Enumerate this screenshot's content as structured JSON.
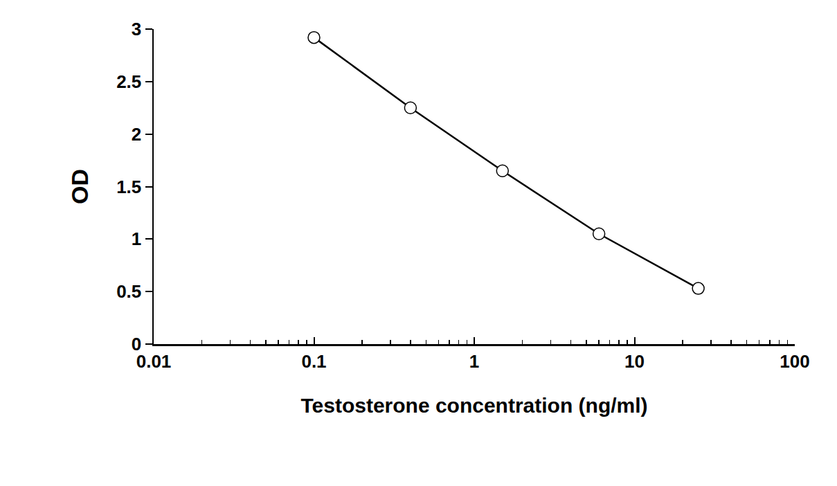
{
  "chart_data": {
    "type": "line",
    "x": [
      0.1,
      0.4,
      1.5,
      6,
      25
    ],
    "values": [
      2.92,
      2.25,
      1.65,
      1.05,
      0.53
    ],
    "xlabel": "Testosterone concentration (ng/ml)",
    "ylabel": "OD",
    "xlim": [
      0.01,
      100
    ],
    "ylim": [
      0,
      3
    ],
    "xticks": [
      0.01,
      0.1,
      1,
      10,
      100
    ],
    "yticks": [
      0,
      0.5,
      1,
      1.5,
      2,
      2.5,
      3
    ],
    "log": "x",
    "grid": false,
    "marker": "circle-open",
    "color": "#000000"
  }
}
